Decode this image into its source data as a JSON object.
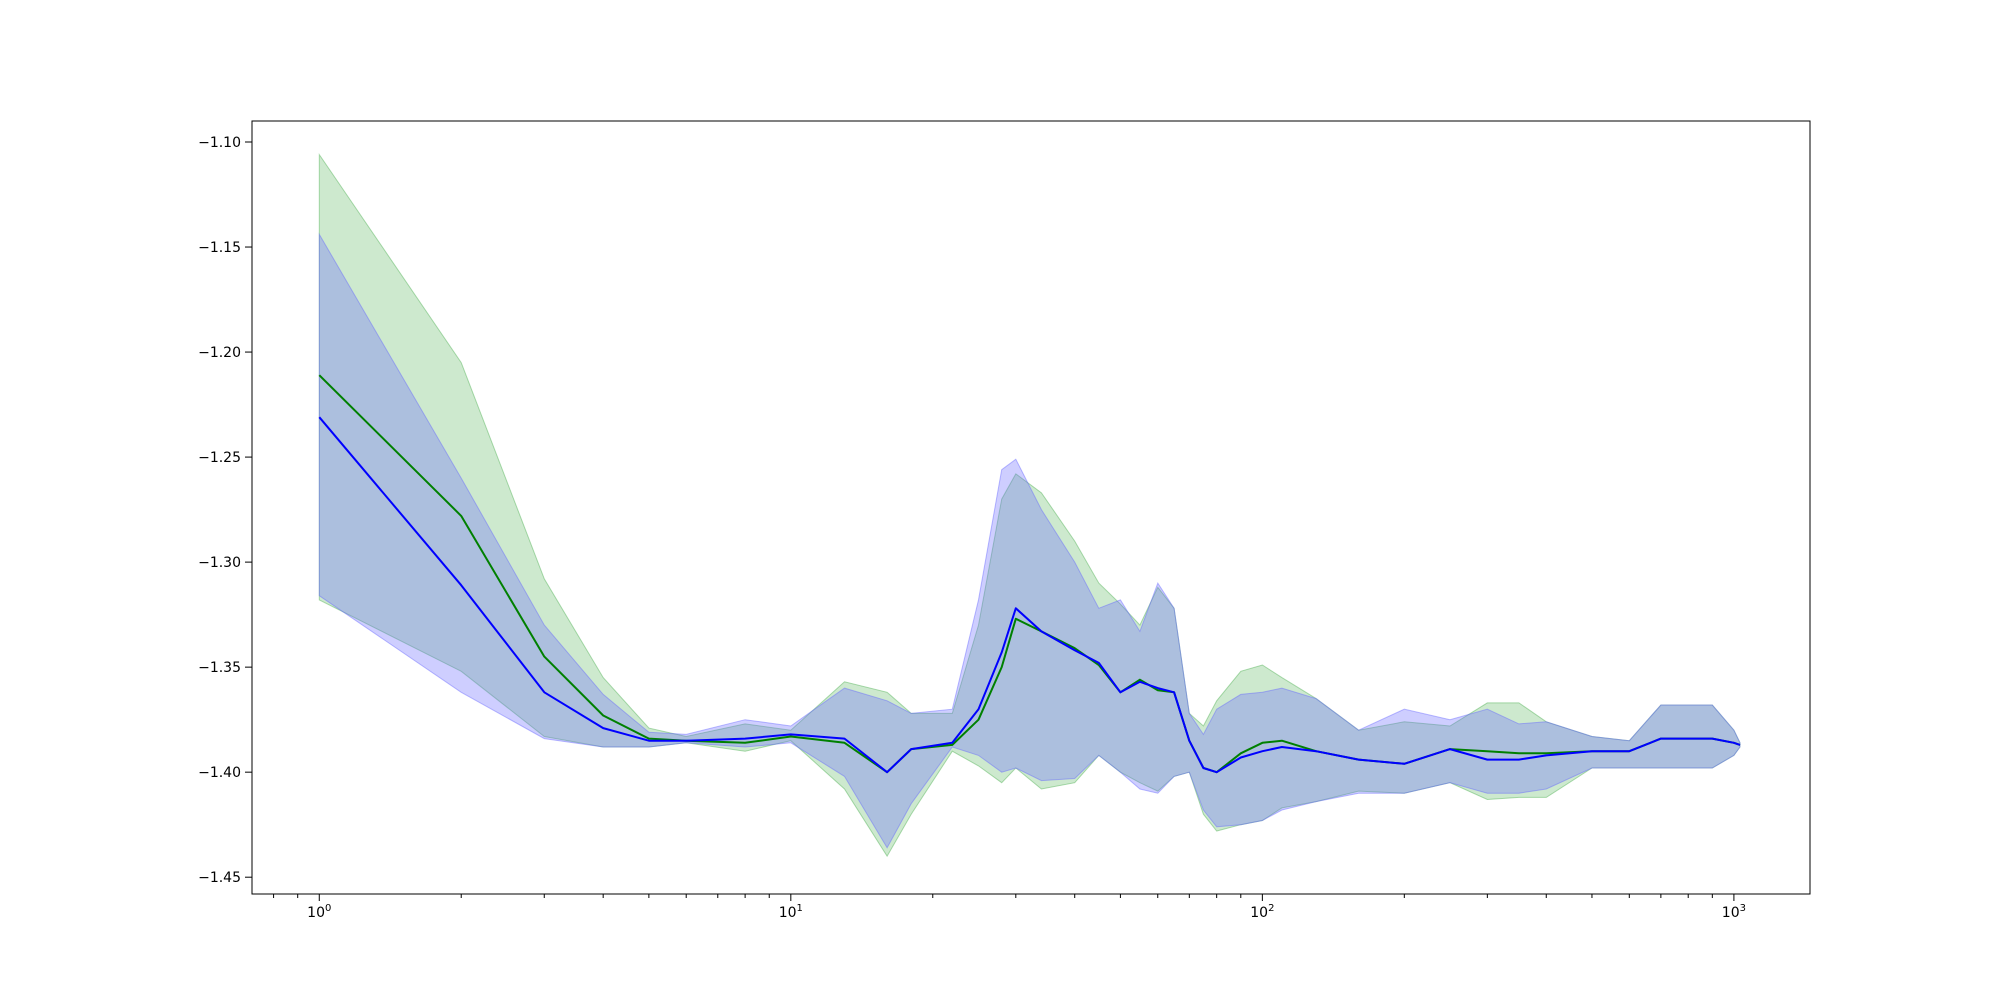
{
  "chart_data": {
    "type": "line",
    "title": "",
    "xlabel": "",
    "ylabel": "",
    "xscale": "log",
    "xlim": [
      0.72,
      1450
    ],
    "ylim": [
      -1.458,
      -1.09
    ],
    "grid": false,
    "legend": "none",
    "x_ticks": [
      {
        "value": 1,
        "base": "10",
        "exp": "0"
      },
      {
        "value": 10,
        "base": "10",
        "exp": "1"
      },
      {
        "value": 100,
        "base": "10",
        "exp": "2"
      },
      {
        "value": 1000,
        "base": "10",
        "exp": "3"
      }
    ],
    "y_ticks": [
      {
        "value": -1.1,
        "label": "−1.10"
      },
      {
        "value": -1.15,
        "label": "−1.15"
      },
      {
        "value": -1.2,
        "label": "−1.20"
      },
      {
        "value": -1.25,
        "label": "−1.25"
      },
      {
        "value": -1.3,
        "label": "−1.30"
      },
      {
        "value": -1.35,
        "label": "−1.35"
      },
      {
        "value": -1.4,
        "label": "−1.40"
      },
      {
        "value": -1.45,
        "label": "−1.45"
      }
    ],
    "series": [
      {
        "color": "#008000",
        "band_color": "#4caf50",
        "band_opacity": 0.28,
        "x": [
          1,
          2,
          3,
          4,
          5,
          6,
          8,
          10,
          13,
          16,
          18,
          22,
          25,
          28,
          30,
          34,
          40,
          45,
          50,
          55,
          60,
          65,
          70,
          75,
          80,
          90,
          100,
          110,
          130,
          160,
          200,
          250,
          300,
          350,
          400,
          500,
          600,
          700,
          800,
          900,
          1000,
          1030
        ],
        "mean": [
          -1.211,
          -1.278,
          -1.345,
          -1.373,
          -1.384,
          -1.385,
          -1.386,
          -1.383,
          -1.386,
          -1.4,
          -1.389,
          -1.387,
          -1.375,
          -1.35,
          -1.327,
          -1.333,
          -1.341,
          -1.349,
          -1.362,
          -1.356,
          -1.361,
          -1.362,
          -1.385,
          -1.398,
          -1.4,
          -1.391,
          -1.386,
          -1.385,
          -1.39,
          -1.394,
          -1.396,
          -1.389,
          -1.39,
          -1.391,
          -1.391,
          -1.39,
          -1.39,
          -1.384,
          -1.384,
          -1.384,
          -1.386,
          -1.387
        ],
        "upper": [
          -1.106,
          -1.205,
          -1.308,
          -1.355,
          -1.379,
          -1.383,
          -1.377,
          -1.38,
          -1.357,
          -1.362,
          -1.372,
          -1.372,
          -1.33,
          -1.27,
          -1.258,
          -1.267,
          -1.29,
          -1.31,
          -1.32,
          -1.33,
          -1.312,
          -1.322,
          -1.372,
          -1.378,
          -1.366,
          -1.352,
          -1.349,
          -1.355,
          -1.365,
          -1.38,
          -1.376,
          -1.378,
          -1.367,
          -1.367,
          -1.376,
          -1.383,
          -1.385,
          -1.368,
          -1.368,
          -1.368,
          -1.38,
          -1.386
        ],
        "lower": [
          -1.318,
          -1.352,
          -1.383,
          -1.388,
          -1.388,
          -1.386,
          -1.39,
          -1.385,
          -1.408,
          -1.44,
          -1.42,
          -1.39,
          -1.397,
          -1.405,
          -1.398,
          -1.408,
          -1.405,
          -1.392,
          -1.4,
          -1.405,
          -1.409,
          -1.402,
          -1.4,
          -1.42,
          -1.428,
          -1.425,
          -1.423,
          -1.417,
          -1.414,
          -1.409,
          -1.41,
          -1.405,
          -1.413,
          -1.412,
          -1.412,
          -1.398,
          -1.398,
          -1.398,
          -1.398,
          -1.398,
          -1.392,
          -1.388
        ]
      },
      {
        "color": "#0000ff",
        "band_color": "#6666ff",
        "band_opacity": 0.32,
        "x": [
          1,
          2,
          3,
          4,
          5,
          6,
          8,
          10,
          13,
          16,
          18,
          22,
          25,
          28,
          30,
          34,
          40,
          45,
          50,
          55,
          60,
          65,
          70,
          75,
          80,
          90,
          100,
          110,
          130,
          160,
          200,
          250,
          300,
          350,
          400,
          500,
          600,
          700,
          800,
          900,
          1000,
          1030
        ],
        "mean": [
          -1.231,
          -1.311,
          -1.362,
          -1.379,
          -1.385,
          -1.385,
          -1.384,
          -1.382,
          -1.384,
          -1.4,
          -1.389,
          -1.386,
          -1.37,
          -1.343,
          -1.322,
          -1.333,
          -1.342,
          -1.348,
          -1.362,
          -1.357,
          -1.36,
          -1.362,
          -1.385,
          -1.398,
          -1.4,
          -1.393,
          -1.39,
          -1.388,
          -1.39,
          -1.394,
          -1.396,
          -1.389,
          -1.394,
          -1.394,
          -1.392,
          -1.39,
          -1.39,
          -1.384,
          -1.384,
          -1.384,
          -1.386,
          -1.387
        ],
        "upper": [
          -1.144,
          -1.26,
          -1.33,
          -1.363,
          -1.381,
          -1.382,
          -1.375,
          -1.378,
          -1.36,
          -1.366,
          -1.372,
          -1.37,
          -1.318,
          -1.256,
          -1.251,
          -1.275,
          -1.3,
          -1.322,
          -1.318,
          -1.333,
          -1.31,
          -1.322,
          -1.372,
          -1.382,
          -1.37,
          -1.363,
          -1.362,
          -1.36,
          -1.365,
          -1.38,
          -1.37,
          -1.375,
          -1.37,
          -1.377,
          -1.376,
          -1.383,
          -1.385,
          -1.368,
          -1.368,
          -1.368,
          -1.38,
          -1.386
        ],
        "lower": [
          -1.316,
          -1.362,
          -1.384,
          -1.388,
          -1.388,
          -1.386,
          -1.388,
          -1.386,
          -1.402,
          -1.436,
          -1.415,
          -1.388,
          -1.392,
          -1.4,
          -1.398,
          -1.404,
          -1.403,
          -1.392,
          -1.4,
          -1.408,
          -1.41,
          -1.402,
          -1.4,
          -1.418,
          -1.426,
          -1.425,
          -1.423,
          -1.418,
          -1.414,
          -1.41,
          -1.41,
          -1.405,
          -1.41,
          -1.41,
          -1.408,
          -1.398,
          -1.398,
          -1.398,
          -1.398,
          -1.398,
          -1.392,
          -1.388
        ]
      }
    ]
  }
}
